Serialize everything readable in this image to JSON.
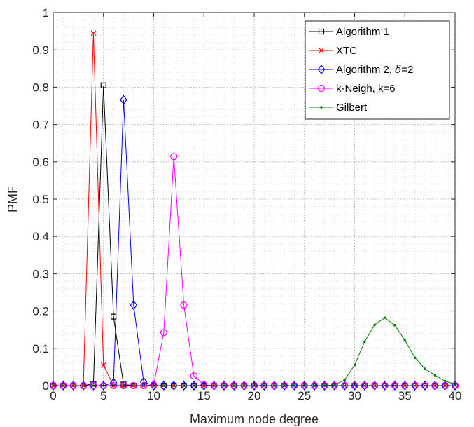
{
  "chart_data": {
    "type": "line",
    "xlabel": "Maximum node degree",
    "ylabel": "PMF",
    "xlim": [
      0,
      40
    ],
    "ylim": [
      0,
      1
    ],
    "xticks": [
      0,
      5,
      10,
      15,
      20,
      25,
      30,
      35,
      40
    ],
    "xtick_labels": [
      "0",
      "5",
      "10",
      "15",
      "20",
      "25",
      "30",
      "35",
      "40"
    ],
    "yticks": [
      0,
      0.1,
      0.2,
      0.3,
      0.4,
      0.5,
      0.6,
      0.7,
      0.8,
      0.9,
      1
    ],
    "ytick_labels": [
      "0",
      "0.1",
      "0.2",
      "0.3",
      "0.4",
      "0.5",
      "0.6",
      "0.7",
      "0.8",
      "0.9",
      "1"
    ],
    "grid": true,
    "minor_grid": true,
    "legend_position": "top-right",
    "series": [
      {
        "name": "Algorithm 1",
        "color": "#000000",
        "marker": "square",
        "x": [
          0,
          1,
          2,
          3,
          4,
          5,
          6,
          7,
          8,
          9,
          10,
          11,
          12,
          13,
          14,
          15,
          16,
          17,
          18,
          19,
          20,
          21,
          22,
          23,
          24,
          25,
          26,
          27,
          28,
          29,
          30,
          31,
          32,
          33,
          34,
          35,
          36,
          37,
          38,
          39,
          40
        ],
        "y": [
          0,
          0,
          0,
          0,
          0.005,
          0.805,
          0.185,
          0.003,
          0,
          0,
          0,
          0,
          0,
          0,
          0,
          0,
          0,
          0,
          0,
          0,
          0,
          0,
          0,
          0,
          0,
          0,
          0,
          0,
          0,
          0,
          0,
          0,
          0,
          0,
          0,
          0,
          0,
          0,
          0,
          0,
          0
        ]
      },
      {
        "name": "XTC",
        "color": "#ff0000",
        "marker": "x",
        "x": [
          0,
          1,
          2,
          3,
          4,
          5,
          6,
          7,
          8,
          9,
          10,
          11,
          12,
          13,
          14,
          15,
          16,
          17,
          18,
          19,
          20,
          21,
          22,
          23,
          24,
          25,
          26,
          27,
          28,
          29,
          30,
          31,
          32,
          33,
          34,
          35,
          36,
          37,
          38,
          39,
          40
        ],
        "y": [
          0,
          0,
          0,
          0,
          0.945,
          0.055,
          0,
          0,
          0,
          0,
          0,
          0,
          0,
          0,
          0,
          0,
          0,
          0,
          0,
          0,
          0,
          0,
          0,
          0,
          0,
          0,
          0,
          0,
          0,
          0,
          0,
          0,
          0,
          0,
          0,
          0,
          0,
          0,
          0,
          0,
          0
        ]
      },
      {
        "name": "Algorithm 2, δ=2",
        "legend_parts": [
          "Algorithm 2, ",
          "δ",
          "=2"
        ],
        "color": "#0000ff",
        "marker": "diamond",
        "x": [
          0,
          1,
          2,
          3,
          4,
          5,
          6,
          7,
          8,
          9,
          10,
          11,
          12,
          13,
          14,
          15,
          16,
          17,
          18,
          19,
          20,
          21,
          22,
          23,
          24,
          25,
          26,
          27,
          28,
          29,
          30,
          31,
          32,
          33,
          34,
          35,
          36,
          37,
          38,
          39,
          40
        ],
        "y": [
          0,
          0,
          0,
          0,
          0,
          0,
          0.008,
          0.766,
          0.216,
          0.01,
          0,
          0,
          0,
          0,
          0,
          0,
          0,
          0,
          0,
          0,
          0,
          0,
          0,
          0,
          0,
          0,
          0,
          0,
          0,
          0,
          0,
          0,
          0,
          0,
          0,
          0,
          0,
          0,
          0,
          0,
          0
        ]
      },
      {
        "name": "k-Neigh, k=6",
        "color": "#ff00ff",
        "marker": "circle",
        "x": [
          0,
          1,
          2,
          3,
          4,
          5,
          6,
          7,
          8,
          9,
          10,
          11,
          12,
          13,
          14,
          15,
          16,
          17,
          18,
          19,
          20,
          21,
          22,
          23,
          24,
          25,
          26,
          27,
          28,
          29,
          30,
          31,
          32,
          33,
          34,
          35,
          36,
          37,
          38,
          39,
          40
        ],
        "y": [
          0,
          0,
          0,
          0,
          0,
          0,
          0,
          0,
          0,
          0,
          0.002,
          0.142,
          0.614,
          0.216,
          0.026,
          0.002,
          0,
          0,
          0,
          0,
          0,
          0,
          0,
          0,
          0,
          0,
          0,
          0,
          0,
          0,
          0,
          0,
          0,
          0,
          0,
          0,
          0,
          0,
          0,
          0,
          0
        ]
      },
      {
        "name": "Gilbert",
        "color": "#008000",
        "marker": "dot",
        "x": [
          0,
          1,
          2,
          3,
          4,
          5,
          6,
          7,
          8,
          9,
          10,
          11,
          12,
          13,
          14,
          15,
          16,
          17,
          18,
          19,
          20,
          21,
          22,
          23,
          24,
          25,
          26,
          27,
          28,
          29,
          30,
          31,
          32,
          33,
          34,
          35,
          36,
          37,
          38,
          39,
          40
        ],
        "y": [
          0,
          0,
          0,
          0,
          0,
          0,
          0,
          0,
          0,
          0,
          0,
          0,
          0,
          0,
          0,
          0,
          0,
          0,
          0,
          0,
          0,
          0,
          0,
          0,
          0,
          0,
          0,
          0,
          0.002,
          0.015,
          0.055,
          0.118,
          0.163,
          0.182,
          0.162,
          0.122,
          0.075,
          0.045,
          0.028,
          0.012,
          0.004
        ]
      }
    ]
  }
}
